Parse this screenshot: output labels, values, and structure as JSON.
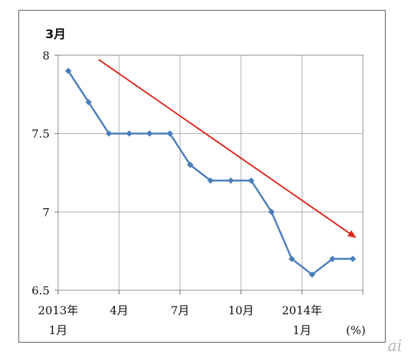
{
  "chart_data": {
    "type": "line",
    "title": "3月",
    "unit_label": "(%)",
    "xlabel": "",
    "ylabel": "",
    "ylim": [
      6.5,
      8
    ],
    "y_ticks": [
      "8",
      "7.5",
      "7",
      "6.5"
    ],
    "x_tick_labels": [
      {
        "line1": "2013年",
        "line2": "1月"
      },
      {
        "line1": "4月",
        "line2": ""
      },
      {
        "line1": "7月",
        "line2": ""
      },
      {
        "line1": "10月",
        "line2": ""
      },
      {
        "line1": "2014年",
        "line2": "1月"
      }
    ],
    "grid": true,
    "series": [
      {
        "color": "#4a7ebb",
        "values": [
          7.9,
          7.7,
          7.5,
          7.5,
          7.5,
          7.5,
          7.3,
          7.2,
          7.2,
          7.2,
          7.0,
          6.7,
          6.6,
          6.7,
          6.7
        ]
      }
    ],
    "annotations": [
      {
        "type": "arrow",
        "color": "#e0251b",
        "direction": "downward trend"
      }
    ]
  },
  "watermark": "ai"
}
